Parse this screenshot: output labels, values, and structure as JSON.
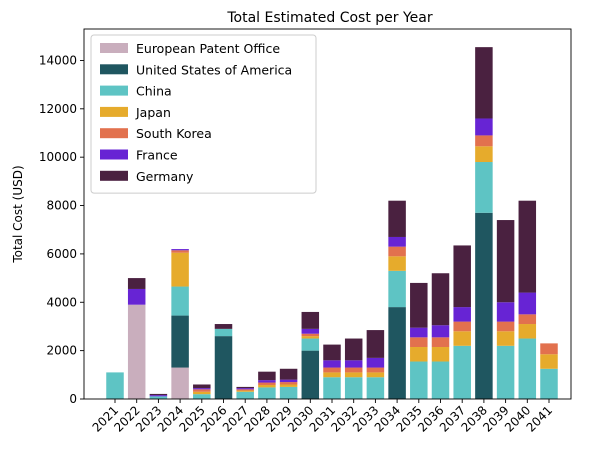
{
  "chart_data": {
    "type": "bar",
    "stacked": true,
    "title": "Total Estimated Cost per Year",
    "xlabel": "",
    "ylabel": "Total Cost (USD)",
    "ylim": [
      0,
      15300
    ],
    "yticks": [
      0,
      2000,
      4000,
      6000,
      8000,
      10000,
      12000,
      14000
    ],
    "grid": false,
    "legend_position": "top-left",
    "categories": [
      "2021",
      "2022",
      "2023",
      "2024",
      "2025",
      "2026",
      "2027",
      "2028",
      "2029",
      "2030",
      "2031",
      "2032",
      "2033",
      "2034",
      "2035",
      "2036",
      "2037",
      "2038",
      "2039",
      "2040",
      "2041"
    ],
    "series": [
      {
        "name": "European Patent Office",
        "color": "#c9aebd",
        "values": [
          0,
          3900,
          0,
          1300,
          0,
          0,
          0,
          0,
          0,
          0,
          0,
          0,
          0,
          0,
          0,
          0,
          0,
          0,
          0,
          0,
          0
        ]
      },
      {
        "name": "United States of America",
        "color": "#1f5660",
        "values": [
          0,
          0,
          0,
          2150,
          0,
          2600,
          0,
          0,
          0,
          2000,
          0,
          0,
          0,
          3800,
          0,
          0,
          0,
          7700,
          0,
          0,
          0
        ]
      },
      {
        "name": "China",
        "color": "#5ec4c4",
        "values": [
          1100,
          0,
          110,
          1200,
          200,
          300,
          300,
          480,
          500,
          500,
          900,
          900,
          900,
          1500,
          1550,
          1550,
          2200,
          2100,
          2200,
          2500,
          1250
        ]
      },
      {
        "name": "Japan",
        "color": "#e6ab2c",
        "values": [
          0,
          0,
          0,
          1400,
          100,
          0,
          50,
          100,
          100,
          100,
          200,
          200,
          200,
          600,
          600,
          600,
          600,
          650,
          600,
          600,
          600
        ]
      },
      {
        "name": "South Korea",
        "color": "#e2714e",
        "values": [
          0,
          0,
          0,
          100,
          100,
          0,
          50,
          100,
          100,
          100,
          200,
          200,
          200,
          400,
          400,
          400,
          400,
          450,
          400,
          400,
          450
        ]
      },
      {
        "name": "France",
        "color": "#6724d4",
        "values": [
          0,
          650,
          50,
          50,
          50,
          0,
          50,
          100,
          100,
          200,
          300,
          300,
          400,
          400,
          400,
          500,
          600,
          700,
          800,
          900,
          0
        ]
      },
      {
        "name": "Germany",
        "color": "#4a2140",
        "values": [
          0,
          450,
          50,
          0,
          150,
          200,
          50,
          350,
          450,
          700,
          650,
          900,
          1150,
          1500,
          1850,
          2150,
          2550,
          2950,
          3400,
          3800,
          0
        ]
      }
    ]
  }
}
